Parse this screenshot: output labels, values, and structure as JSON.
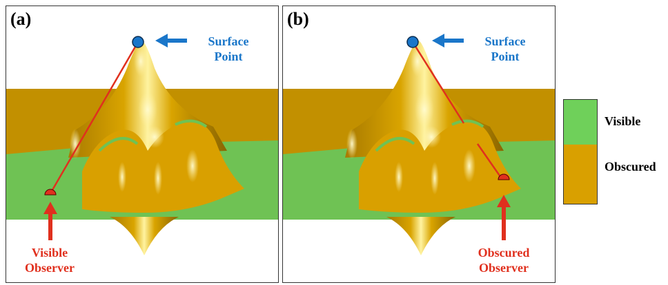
{
  "panels": [
    {
      "label": "(a)",
      "surface_point_label": [
        "Surface",
        "Point"
      ],
      "observer_label": [
        "Visible",
        "Observer"
      ],
      "observer_state": "visible"
    },
    {
      "label": "(b)",
      "surface_point_label": [
        "Surface",
        "Point"
      ],
      "observer_label": [
        "Obscured",
        "Observer"
      ],
      "observer_state": "obscured"
    }
  ],
  "legend": {
    "visible": "Visible",
    "obscured": "Obscured"
  },
  "colors": {
    "visible": "#6fd05a",
    "obscured": "#d9a000",
    "surface_point": "#1a76c9",
    "observer": "#e0301e",
    "sight_line": "#e0301e"
  }
}
